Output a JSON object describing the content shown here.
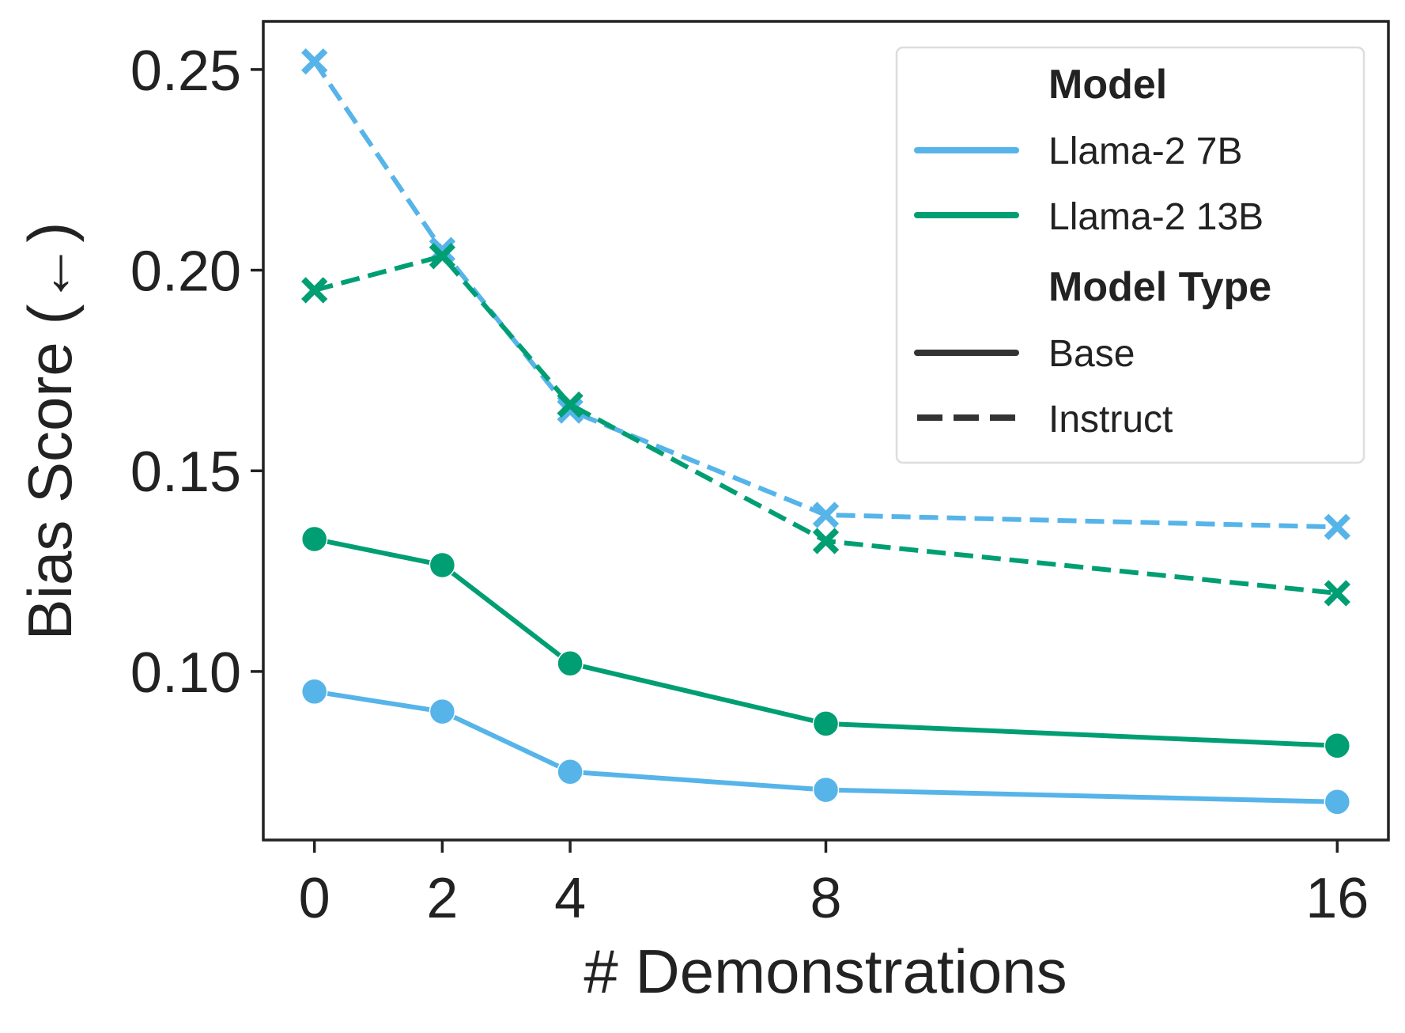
{
  "chart_data": {
    "type": "line",
    "title": "",
    "xlabel": "# Demonstrations",
    "ylabel": "Bias Score (←)",
    "x": [
      0,
      2,
      4,
      8,
      16
    ],
    "xticks": [
      "0",
      "2",
      "4",
      "8",
      "16"
    ],
    "yticks": [
      0.1,
      0.15,
      0.2,
      0.25
    ],
    "ytick_labels": [
      "0.10",
      "0.15",
      "0.20",
      "0.25"
    ],
    "xlim": [
      -0.8,
      16.8
    ],
    "ylim": [
      0.058,
      0.262
    ],
    "grid": false,
    "legend_position": "top-right",
    "series": [
      {
        "name": "Llama-2 7B Base",
        "model": "Llama-2 7B",
        "model_type": "Base",
        "color": "#56b4e9",
        "dash": "solid",
        "marker": "circle",
        "values": [
          0.095,
          0.09,
          0.075,
          0.0705,
          0.0675
        ]
      },
      {
        "name": "Llama-2 13B Base",
        "model": "Llama-2 13B",
        "model_type": "Base",
        "color": "#009e73",
        "dash": "solid",
        "marker": "circle",
        "values": [
          0.133,
          0.1265,
          0.102,
          0.087,
          0.0815
        ]
      },
      {
        "name": "Llama-2 7B Instruct",
        "model": "Llama-2 7B",
        "model_type": "Instruct",
        "color": "#56b4e9",
        "dash": "dashed",
        "marker": "x",
        "values": [
          0.252,
          0.205,
          0.165,
          0.139,
          0.136
        ]
      },
      {
        "name": "Llama-2 13B Instruct",
        "model": "Llama-2 13B",
        "model_type": "Instruct",
        "color": "#009e73",
        "dash": "dashed",
        "marker": "x",
        "values": [
          0.195,
          0.2035,
          0.1665,
          0.1325,
          0.1195
        ]
      }
    ],
    "legend": {
      "model_heading": "Model",
      "model_entries": [
        {
          "label": "Llama-2 7B",
          "color": "#56b4e9"
        },
        {
          "label": "Llama-2 13B",
          "color": "#009e73"
        }
      ],
      "type_heading": "Model Type",
      "type_entries": [
        {
          "label": "Base",
          "dash": "solid",
          "color": "#333333"
        },
        {
          "label": "Instruct",
          "dash": "dashed",
          "color": "#333333"
        }
      ]
    }
  }
}
